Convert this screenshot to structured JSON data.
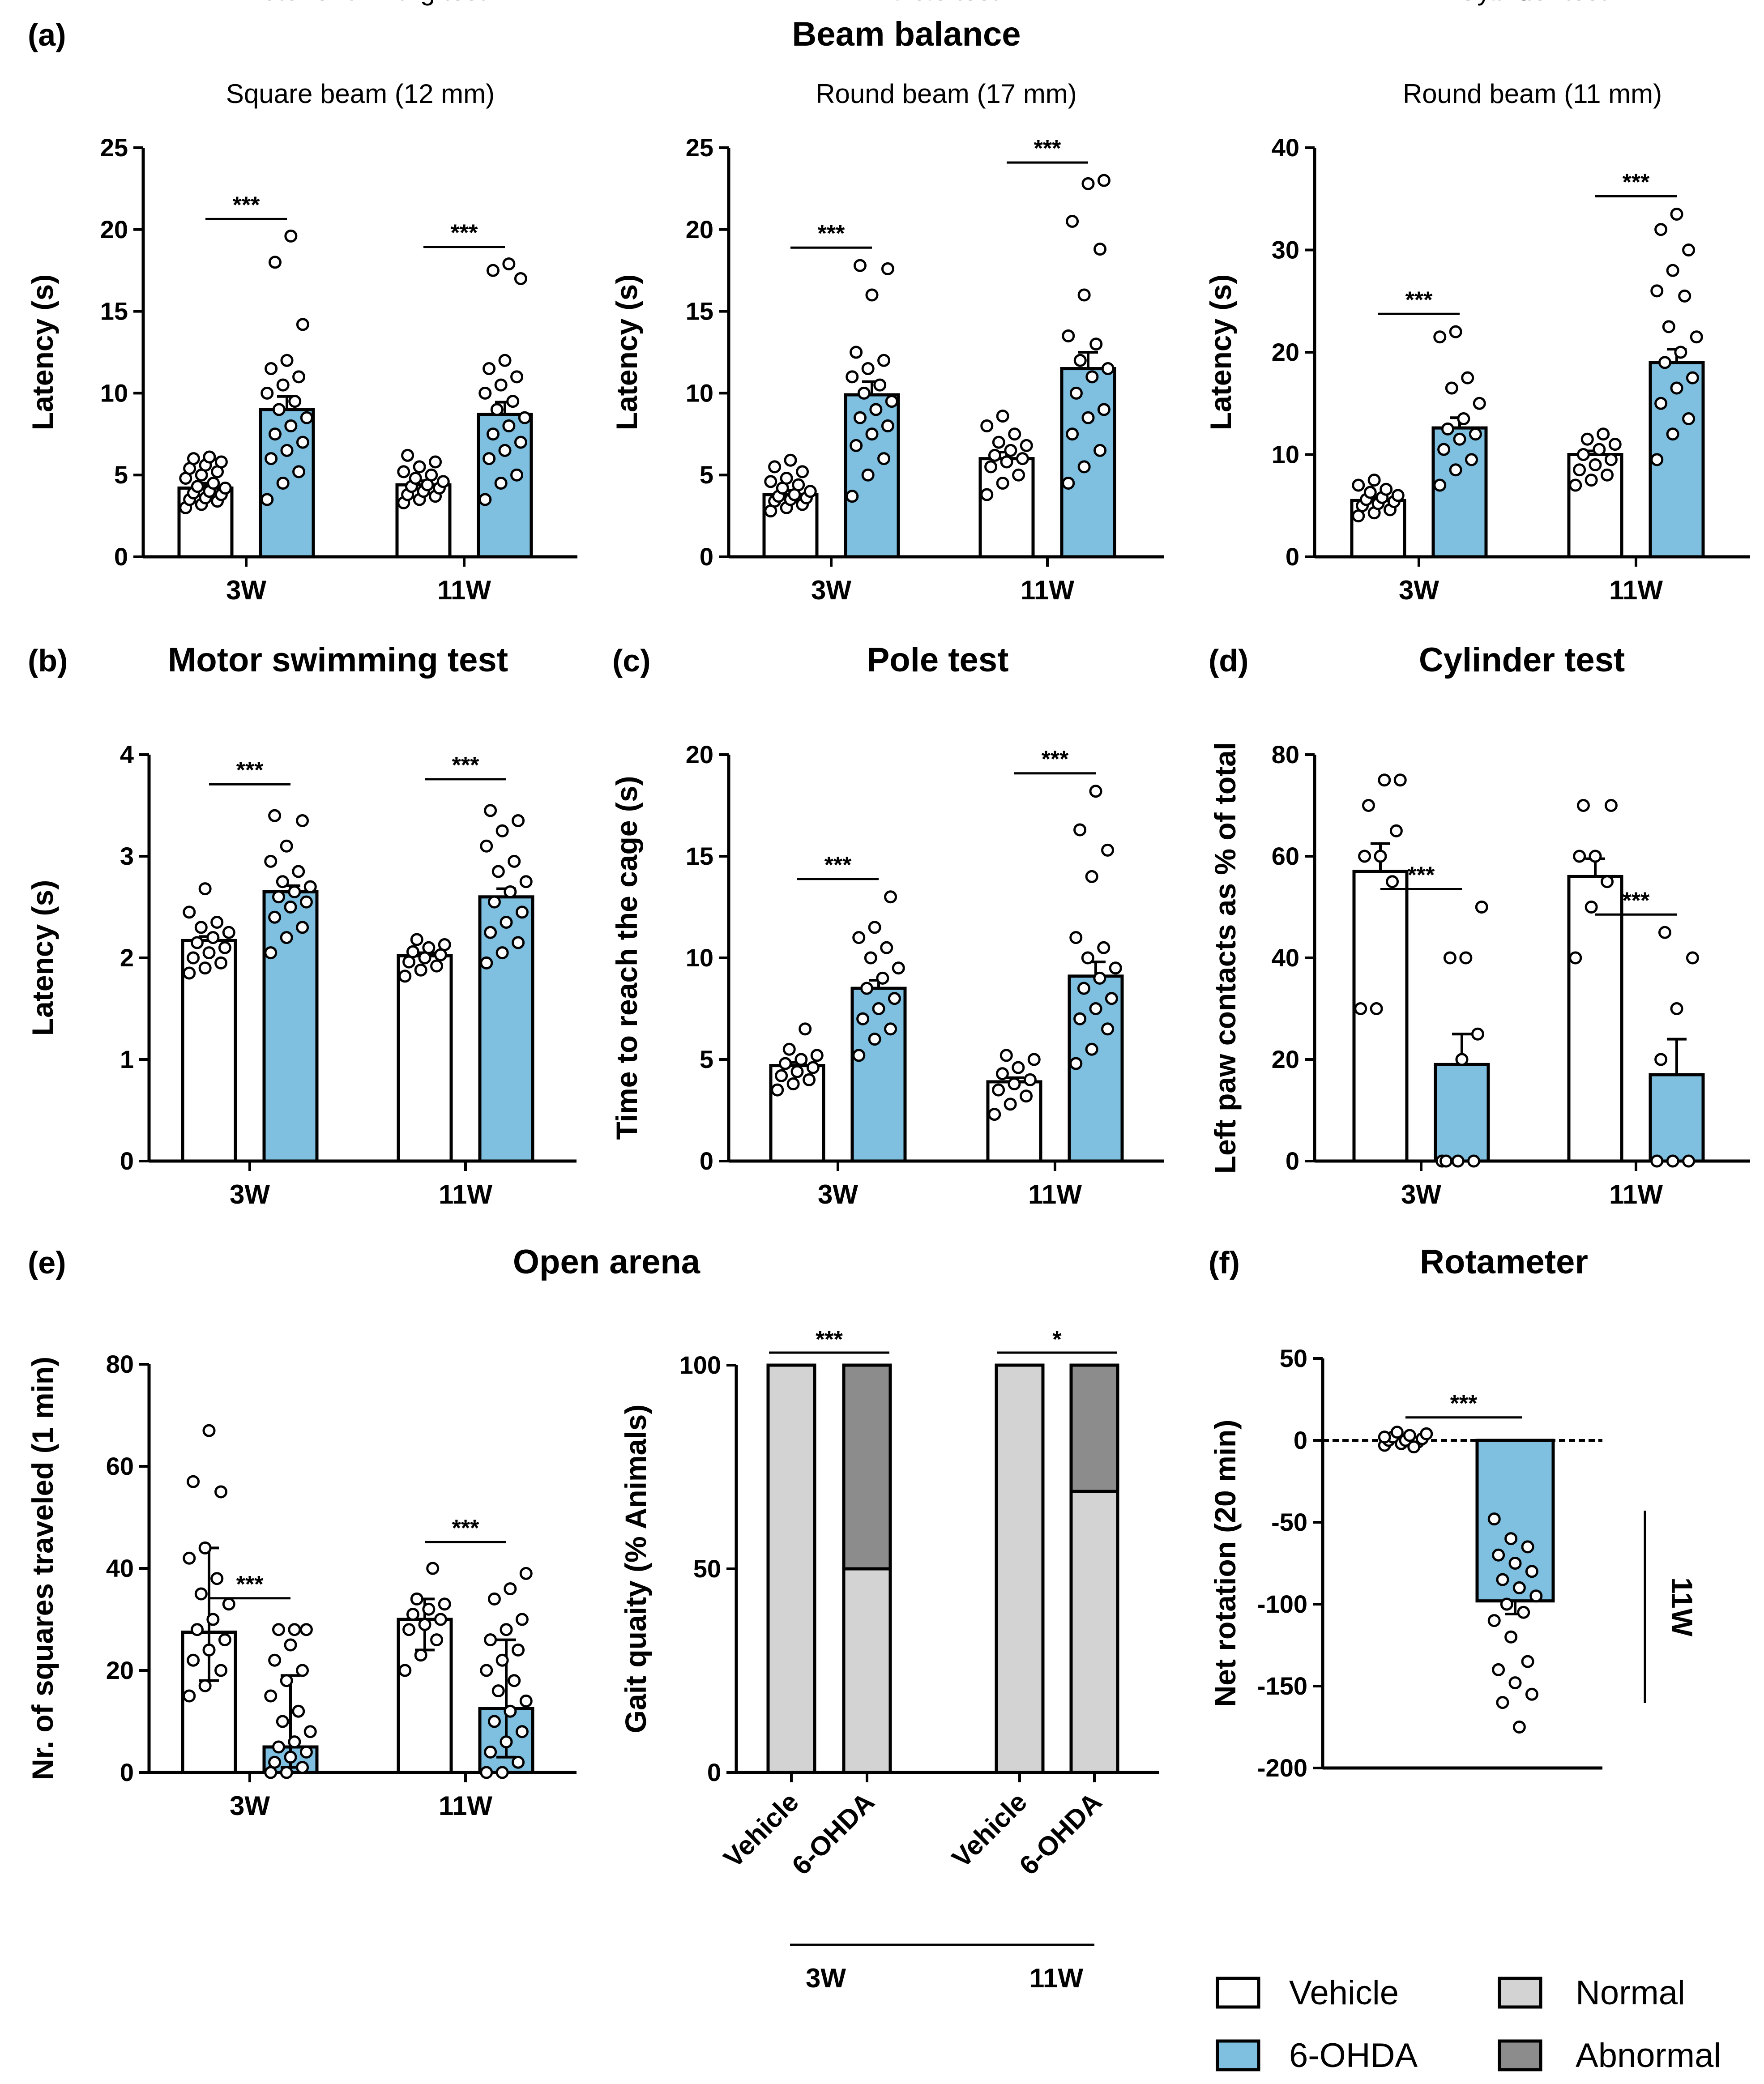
{
  "panel_letters": {
    "a": "(a)",
    "b": "(b)",
    "c": "(c)",
    "d": "(d)",
    "e": "(e)",
    "f": "(f)"
  },
  "titles": {
    "beam_balance": "Beam balance",
    "motor_swimming": "Motor swimming test",
    "pole": "Pole test",
    "cylinder": "Cylinder test",
    "open_arena": "Open arena",
    "rotameter": "Rotameter"
  },
  "colors": {
    "vehicle": "#ffffff",
    "ohda": "#7fbfe0",
    "normal": "#d3d3d3",
    "abnormal": "#8c8c8c",
    "ink": "#000000"
  },
  "legend": {
    "vehicle": "Vehicle",
    "ohda": "6-OHDA",
    "normal": "Normal",
    "abnormal": "Abnormal"
  },
  "chart_data": [
    {
      "id": "square_beam",
      "type": "bar",
      "title": "Square beam (12 mm)",
      "ylabel": "Latency (s)",
      "ylim": [
        0,
        25
      ],
      "yticks": [
        0,
        5,
        10,
        15,
        20,
        25
      ],
      "categories": [
        "3W",
        "11W"
      ],
      "series": [
        {
          "name": "Vehicle",
          "values": [
            4.2,
            4.4
          ],
          "sem": [
            0.3,
            0.25
          ],
          "points": [
            [
              3.0,
              3.2,
              3.4,
              3.5,
              3.6,
              3.8,
              3.9,
              4.0,
              4.2,
              4.3,
              4.5,
              4.8,
              5.0,
              5.2,
              5.4,
              5.6,
              5.8,
              6.0,
              6.1
            ],
            [
              3.3,
              3.5,
              3.7,
              3.8,
              4.0,
              4.2,
              4.3,
              4.4,
              4.6,
              4.8,
              5.0,
              5.2,
              5.5,
              5.8,
              6.2
            ]
          ]
        },
        {
          "name": "6-OHDA",
          "values": [
            9.0,
            8.7
          ],
          "sem": [
            0.8,
            0.75
          ],
          "points": [
            [
              3.5,
              4.5,
              5.2,
              6.0,
              6.5,
              7.0,
              7.5,
              8.0,
              8.5,
              9.0,
              9.5,
              10.0,
              10.5,
              11.0,
              11.5,
              12.0,
              14.2,
              18.0,
              19.6
            ],
            [
              3.5,
              4.5,
              5.0,
              6.0,
              6.5,
              7.0,
              7.5,
              8.0,
              8.5,
              9.0,
              9.5,
              10.0,
              10.5,
              11.0,
              11.5,
              12.0,
              17.0,
              17.5,
              17.9
            ]
          ]
        }
      ],
      "significance": [
        "***",
        "***"
      ]
    },
    {
      "id": "round_beam_17",
      "type": "bar",
      "title": "Round beam (17 mm)",
      "ylabel": "Latency (s)",
      "ylim": [
        0,
        25
      ],
      "yticks": [
        0,
        5,
        10,
        15,
        20,
        25
      ],
      "categories": [
        "3W",
        "11W"
      ],
      "series": [
        {
          "name": "Vehicle",
          "values": [
            3.8,
            6.0
          ],
          "sem": [
            0.25,
            0.4
          ],
          "points": [
            [
              2.8,
              3.0,
              3.2,
              3.4,
              3.5,
              3.6,
              3.7,
              3.8,
              4.0,
              4.2,
              4.4,
              4.6,
              4.8,
              5.2,
              5.5,
              5.9
            ],
            [
              3.8,
              4.5,
              5.0,
              5.5,
              5.8,
              6.0,
              6.2,
              6.5,
              6.8,
              7.0,
              7.5,
              8.0,
              8.6
            ]
          ]
        },
        {
          "name": "6-OHDA",
          "values": [
            9.9,
            11.5
          ],
          "sem": [
            0.8,
            1.0
          ],
          "points": [
            [
              3.7,
              5.0,
              6.0,
              6.8,
              7.5,
              8.0,
              8.5,
              9.0,
              9.5,
              10.0,
              10.5,
              11.0,
              11.5,
              12.0,
              12.5,
              16.0,
              17.6,
              17.8
            ],
            [
              4.5,
              5.5,
              6.5,
              7.5,
              8.5,
              9.0,
              10.0,
              11.0,
              11.5,
              12.0,
              13.0,
              13.5,
              16.0,
              18.8,
              20.5,
              22.8,
              23.0
            ]
          ]
        }
      ],
      "significance": [
        "***",
        "***"
      ]
    },
    {
      "id": "round_beam_11",
      "type": "bar",
      "title": "Round beam (11 mm)",
      "ylabel": "Latency (s)",
      "ylim": [
        0,
        40
      ],
      "yticks": [
        0,
        10,
        20,
        30,
        40
      ],
      "categories": [
        "3W",
        "11W"
      ],
      "series": [
        {
          "name": "Vehicle",
          "values": [
            5.5,
            10.0
          ],
          "sem": [
            0.3,
            0.35
          ],
          "points": [
            [
              4.0,
              4.3,
              4.6,
              5.0,
              5.2,
              5.4,
              5.6,
              5.8,
              6.0,
              6.3,
              6.6,
              7.0,
              7.5
            ],
            [
              7.0,
              7.5,
              8.0,
              8.5,
              9.0,
              9.5,
              10.0,
              10.5,
              11.0,
              11.5,
              12.0
            ]
          ]
        },
        {
          "name": "6-OHDA",
          "values": [
            12.6,
            19.0
          ],
          "sem": [
            1.0,
            1.3
          ],
          "points": [
            [
              7.0,
              8.5,
              9.5,
              10.5,
              11.5,
              12.0,
              12.5,
              13.5,
              15.0,
              16.5,
              17.5,
              21.5,
              22.0
            ],
            [
              9.5,
              12.0,
              13.5,
              15.0,
              16.5,
              17.5,
              19.0,
              20.0,
              21.5,
              22.5,
              25.5,
              26.0,
              28.0,
              30.0,
              32.0,
              33.5
            ]
          ]
        }
      ],
      "significance": [
        "***",
        "***"
      ]
    },
    {
      "id": "motor_swimming",
      "type": "bar",
      "title": "Motor swimming test",
      "ylabel": "Latency (s)",
      "ylim": [
        0,
        4
      ],
      "yticks": [
        0,
        1,
        2,
        3,
        4
      ],
      "categories": [
        "3W",
        "11W"
      ],
      "series": [
        {
          "name": "Vehicle",
          "values": [
            2.17,
            2.02
          ],
          "sem": [
            0.04,
            0.03
          ],
          "points": [
            [
              1.85,
              1.9,
              1.95,
              2.0,
              2.05,
              2.1,
              2.15,
              2.2,
              2.25,
              2.3,
              2.35,
              2.45,
              2.68
            ],
            [
              1.82,
              1.88,
              1.92,
              1.96,
              2.0,
              2.03,
              2.06,
              2.1,
              2.13,
              2.18
            ]
          ]
        },
        {
          "name": "6-OHDA",
          "values": [
            2.65,
            2.6
          ],
          "sem": [
            0.06,
            0.08
          ],
          "points": [
            [
              2.05,
              2.2,
              2.3,
              2.4,
              2.5,
              2.55,
              2.6,
              2.65,
              2.7,
              2.75,
              2.85,
              2.95,
              3.1,
              3.35,
              3.4
            ],
            [
              1.95,
              2.05,
              2.15,
              2.25,
              2.35,
              2.45,
              2.55,
              2.65,
              2.75,
              2.85,
              2.95,
              3.1,
              3.25,
              3.35,
              3.45
            ]
          ]
        }
      ],
      "significance": [
        "***",
        "***"
      ]
    },
    {
      "id": "pole_test",
      "type": "bar",
      "title": "Pole test",
      "ylabel": "Time to reach the cage (s)",
      "ylim": [
        0,
        20
      ],
      "yticks": [
        0,
        5,
        10,
        15,
        20
      ],
      "categories": [
        "3W",
        "11W"
      ],
      "series": [
        {
          "name": "Vehicle",
          "values": [
            4.7,
            3.9
          ],
          "sem": [
            0.15,
            0.2
          ],
          "points": [
            [
              3.5,
              3.8,
              4.0,
              4.2,
              4.4,
              4.6,
              4.8,
              5.0,
              5.2,
              5.5,
              6.5
            ],
            [
              2.3,
              2.8,
              3.2,
              3.5,
              3.8,
              4.0,
              4.3,
              4.6,
              5.0,
              5.2
            ]
          ]
        },
        {
          "name": "6-OHDA",
          "values": [
            8.5,
            9.1
          ],
          "sem": [
            0.4,
            0.7
          ],
          "points": [
            [
              5.2,
              6.0,
              6.5,
              7.0,
              7.5,
              8.0,
              8.5,
              9.0,
              9.5,
              10.0,
              10.5,
              11.0,
              11.5,
              13.0
            ],
            [
              4.8,
              5.5,
              6.5,
              7.0,
              7.5,
              8.0,
              8.5,
              9.0,
              9.5,
              10.0,
              10.5,
              11.0,
              14.0,
              15.3,
              16.3,
              18.2
            ]
          ]
        }
      ],
      "significance": [
        "***",
        "***"
      ]
    },
    {
      "id": "cylinder_test",
      "type": "bar",
      "title": "Cylinder test",
      "ylabel": "Left paw contacts as % of total",
      "ylim": [
        0,
        80
      ],
      "yticks": [
        0,
        20,
        40,
        60,
        80
      ],
      "categories": [
        "3W",
        "11W"
      ],
      "series": [
        {
          "name": "Vehicle",
          "values": [
            57,
            56
          ],
          "sem": [
            5.5,
            3.5
          ],
          "points": [
            [
              30,
              30,
              55,
              60,
              60,
              65,
              70,
              75,
              75
            ],
            [
              40,
              50,
              55,
              60,
              60,
              70,
              70
            ]
          ]
        },
        {
          "name": "6-OHDA",
          "values": [
            19,
            17
          ],
          "sem": [
            6,
            7
          ],
          "points": [
            [
              0,
              0,
              0,
              0,
              20,
              25,
              40,
              40,
              50
            ],
            [
              0,
              0,
              0,
              20,
              30,
              40,
              45
            ]
          ]
        }
      ],
      "significance": [
        "***",
        "***"
      ]
    },
    {
      "id": "open_arena_squares",
      "type": "bar",
      "ylabel": "Nr. of squares traveled (1 min)",
      "ylim": [
        0,
        80
      ],
      "yticks": [
        0,
        20,
        40,
        60,
        80
      ],
      "categories": [
        "3W",
        "11W"
      ],
      "series": [
        {
          "name": "Vehicle",
          "values": [
            27.5,
            30.0
          ],
          "err_low": [
            18,
            24
          ],
          "err_high": [
            44,
            34
          ],
          "points": [
            [
              15,
              17,
              20,
              22,
              24,
              26,
              28,
              30,
              33,
              35,
              38,
              42,
              44,
              55,
              57,
              67
            ],
            [
              20,
              23,
              26,
              28,
              29,
              30,
              31,
              32,
              33,
              34,
              40
            ]
          ]
        },
        {
          "name": "6-OHDA",
          "values": [
            5.0,
            12.5
          ],
          "err_low": [
            1,
            3
          ],
          "err_high": [
            19,
            26
          ],
          "points": [
            [
              0,
              0,
              1,
              2,
              3,
              4,
              5,
              6,
              8,
              10,
              12,
              15,
              18,
              20,
              22,
              25,
              28,
              28,
              28
            ],
            [
              0,
              0,
              2,
              4,
              6,
              8,
              10,
              12,
              14,
              16,
              18,
              20,
              22,
              24,
              26,
              28,
              30,
              34,
              36,
              39
            ]
          ]
        }
      ],
      "significance": [
        "***",
        "***"
      ]
    },
    {
      "id": "gait_quality",
      "type": "bar",
      "subtype": "stacked",
      "ylabel": "Gait quaity (% Animals)",
      "ylim": [
        0,
        100
      ],
      "yticks": [
        0,
        50,
        100
      ],
      "categories": [
        "Vehicle",
        "6-OHDA",
        "Vehicle",
        "6-OHDA"
      ],
      "groups": [
        "3W",
        "11W"
      ],
      "series": [
        {
          "name": "Normal",
          "values": [
            100,
            50,
            100,
            69
          ]
        },
        {
          "name": "Abnormal",
          "values": [
            0,
            50,
            0,
            31
          ]
        }
      ],
      "significance": [
        "***",
        "*"
      ]
    },
    {
      "id": "rotameter",
      "type": "bar",
      "title": "Rotameter",
      "ylabel": "Net rotation (20 min)",
      "ylim": [
        -200,
        50
      ],
      "yticks": [
        -200,
        -150,
        -100,
        -50,
        0,
        50
      ],
      "group_label": "11W",
      "series": [
        {
          "name": "Vehicle",
          "values": [
            0
          ],
          "sem": [
            1
          ],
          "points": [
            [
              -3,
              -2,
              -1,
              0,
              0,
              1,
              2,
              3,
              4,
              5,
              -4,
              2
            ]
          ]
        },
        {
          "name": "6-OHDA",
          "values": [
            -98
          ],
          "sem": [
            8
          ],
          "points": [
            [
              -48,
              -60,
              -65,
              -70,
              -75,
              -80,
              -85,
              -90,
              -95,
              -100,
              -105,
              -110,
              -120,
              -135,
              -140,
              -148,
              -155,
              -160,
              -175
            ]
          ]
        }
      ],
      "significance": [
        "***"
      ]
    }
  ]
}
